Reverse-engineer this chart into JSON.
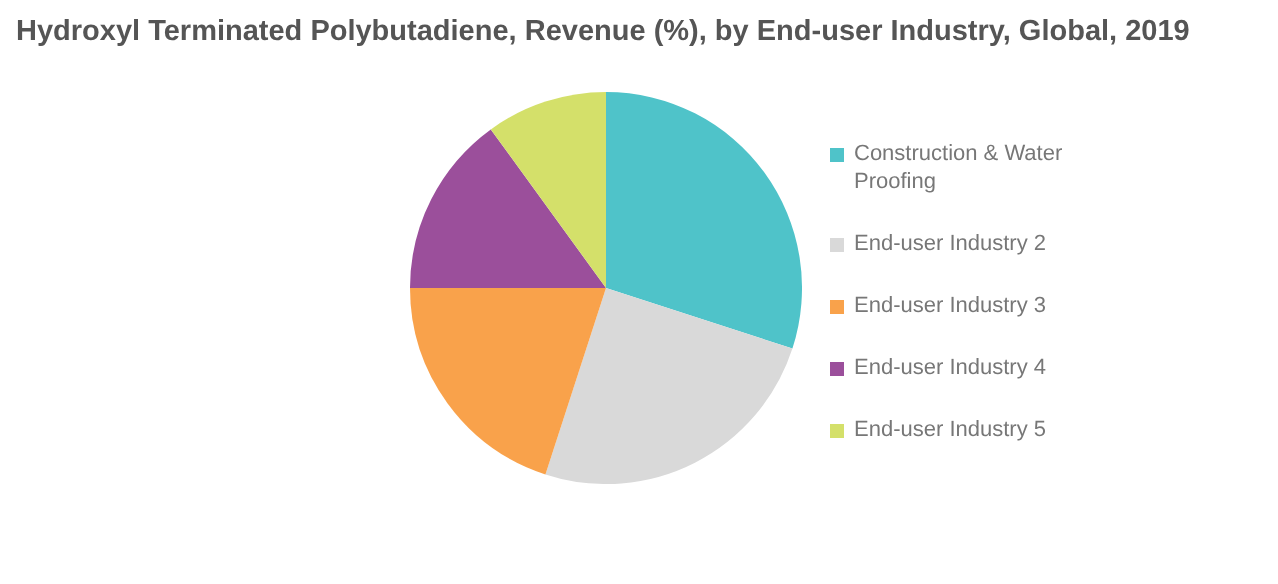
{
  "chart_data": {
    "type": "pie",
    "title": "Hydroxyl Terminated Polybutadiene, Revenue (%), by End-user Industry, Global, 2019",
    "categories": [
      "Construction & Water Proofing",
      "End-user Industry 2",
      "End-user Industry 3",
      "End-user Industry 4",
      "End-user Industry 5"
    ],
    "values": [
      30,
      25,
      20,
      15,
      10
    ],
    "colors": [
      "#4fc3c9",
      "#d9d9d9",
      "#f9a24b",
      "#9b4f9b",
      "#d4e06a"
    ],
    "legend": "right"
  }
}
